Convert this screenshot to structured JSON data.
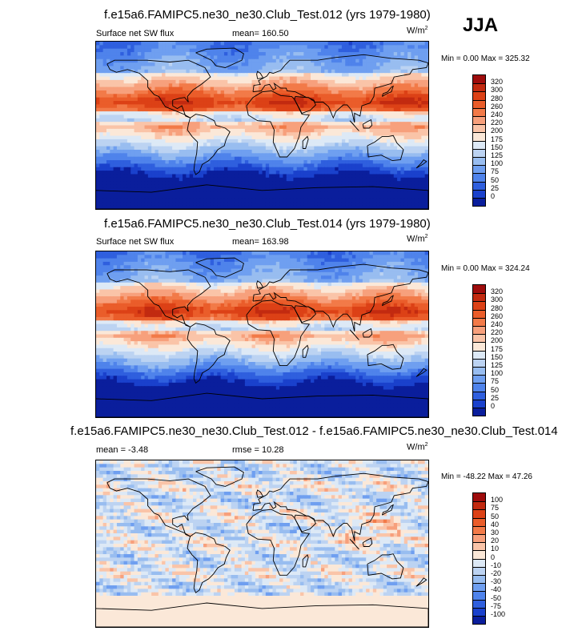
{
  "season": "JJA",
  "panels": [
    {
      "title": "f.e15a6.FAMIPC5.ne30_ne30.Club_Test.012 (yrs 1979-1980)",
      "left_label": "Surface net SW flux",
      "center_label": "mean= 160.50",
      "units_base": "W/m",
      "units_exp": "2",
      "minmax": "Min =   0.00 Max = 325.32"
    },
    {
      "title": "f.e15a6.FAMIPC5.ne30_ne30.Club_Test.014 (yrs 1979-1980)",
      "left_label": "Surface net SW flux",
      "center_label": "mean= 163.98",
      "units_base": "W/m",
      "units_exp": "2",
      "minmax": "Min =   0.00 Max = 324.24"
    },
    {
      "title": "f.e15a6.FAMIPC5.ne30_ne30.Club_Test.012 - f.e15a6.FAMIPC5.ne30_ne30.Club_Test.014",
      "left_label": "mean =  -3.48",
      "center_label": "rmse =  10.28",
      "units_base": "W/m",
      "units_exp": "2",
      "minmax": "Min = -48.22 Max =  47.26"
    }
  ],
  "chart_data": [
    {
      "type": "heatmap",
      "title": "f.e15a6.FAMIPC5.ne30_ne30.Club_Test.012 (yrs 1979-1980)",
      "variable": "Surface net SW flux",
      "mean": 160.5,
      "min": 0.0,
      "max": 325.32,
      "units": "W/m2",
      "colorbar_levels": [
        "320",
        "300",
        "280",
        "260",
        "240",
        "220",
        "200",
        "175",
        "150",
        "125",
        "100",
        "75",
        "50",
        "25",
        "0"
      ],
      "colorbar_colors": [
        "#9e0c0c",
        "#c22a10",
        "#dc4116",
        "#ea5d2a",
        "#f27a48",
        "#f7a07c",
        "#fac4a8",
        "#fbe8d8",
        "#dde9f6",
        "#bcd3f2",
        "#98bdf0",
        "#6f9ff0",
        "#4f83eb",
        "#2f5fde",
        "#1a41cc",
        "#0a1e9c"
      ]
    },
    {
      "type": "heatmap",
      "title": "f.e15a6.FAMIPC5.ne30_ne30.Club_Test.014 (yrs 1979-1980)",
      "variable": "Surface net SW flux",
      "mean": 163.98,
      "min": 0.0,
      "max": 324.24,
      "units": "W/m2",
      "colorbar_levels": [
        "320",
        "300",
        "280",
        "260",
        "240",
        "220",
        "200",
        "175",
        "150",
        "125",
        "100",
        "75",
        "50",
        "25",
        "0"
      ],
      "colorbar_colors": [
        "#9e0c0c",
        "#c22a10",
        "#dc4116",
        "#ea5d2a",
        "#f27a48",
        "#f7a07c",
        "#fac4a8",
        "#fbe8d8",
        "#dde9f6",
        "#bcd3f2",
        "#98bdf0",
        "#6f9ff0",
        "#4f83eb",
        "#2f5fde",
        "#1a41cc",
        "#0a1e9c"
      ]
    },
    {
      "type": "heatmap",
      "title": "f.e15a6.FAMIPC5.ne30_ne30.Club_Test.012 - f.e15a6.FAMIPC5.ne30_ne30.Club_Test.014",
      "mean": -3.48,
      "rmse": 10.28,
      "min": -48.22,
      "max": 47.26,
      "units": "W/m2",
      "colorbar_levels": [
        "100",
        "75",
        "50",
        "40",
        "30",
        "20",
        "10",
        "0",
        "-10",
        "-20",
        "-30",
        "-40",
        "-50",
        "-75",
        "-100"
      ],
      "colorbar_colors": [
        "#9e0c0c",
        "#c22a10",
        "#dc4116",
        "#ea5d2a",
        "#f27a48",
        "#f7a07c",
        "#fac4a8",
        "#fbe8d8",
        "#dde9f6",
        "#bcd3f2",
        "#98bdf0",
        "#6f9ff0",
        "#4f83eb",
        "#2f5fde",
        "#1a41cc",
        "#0a1e9c"
      ]
    }
  ]
}
